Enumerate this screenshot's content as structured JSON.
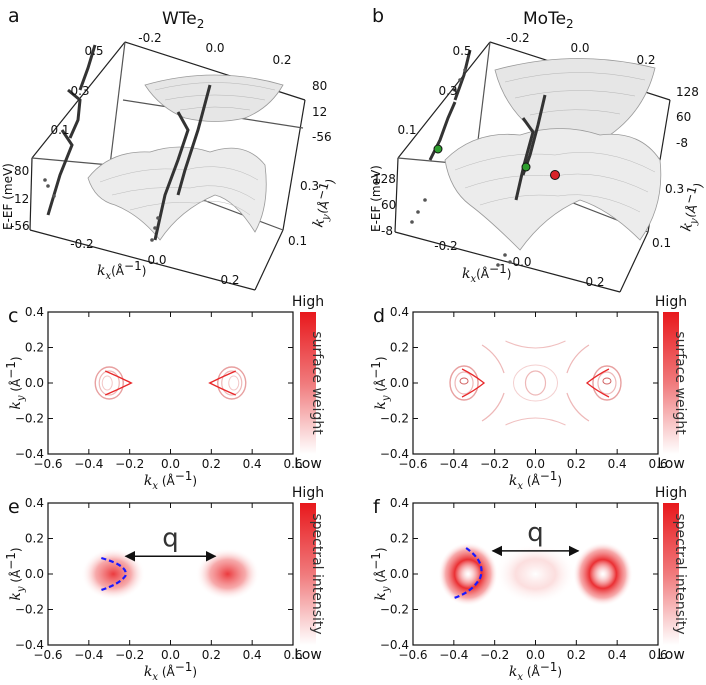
{
  "panels": {
    "a": {
      "label": "a",
      "title": "WTe",
      "title_sub": "2",
      "e_label": "E-EF (meV)",
      "e_ticks_left": [
        "80",
        "12",
        "-56"
      ],
      "e_ticks_right": [
        "80",
        "12",
        "-56"
      ],
      "ky_ticks_vertical": [
        "0.5",
        "0.3",
        "0.1"
      ],
      "ky_ticks_right": [
        "0.3",
        "0.1"
      ],
      "kx_ticks_top": [
        "-0.2",
        "0.0",
        "0.2"
      ],
      "kx_ticks_bottom": [
        "-0.2",
        "0.0",
        "0.2"
      ]
    },
    "b": {
      "label": "b",
      "title": "MoTe",
      "title_sub": "2",
      "e_label": "E-EF (meV)",
      "e_ticks_left": [
        "128",
        "60",
        "-8"
      ],
      "e_ticks_right": [
        "128",
        "60",
        "-8"
      ],
      "ky_ticks_vertical": [
        "0.5",
        "0.3",
        "0.1"
      ],
      "ky_ticks_right": [
        "0.3",
        "0.1"
      ],
      "kx_ticks_top": [
        "-0.2",
        "0.0",
        "0.2"
      ],
      "kx_ticks_bottom": [
        "-0.2",
        "0.0",
        "0.2"
      ]
    },
    "c": {
      "label": "c",
      "colorbar_label": "surface weight",
      "high": "High",
      "low": "Low"
    },
    "d": {
      "label": "d",
      "colorbar_label": "surface weight",
      "high": "High",
      "low": "Low"
    },
    "e": {
      "label": "e",
      "colorbar_label": "spectral intensity",
      "high": "High",
      "low": "Low",
      "q_label": "q"
    },
    "f": {
      "label": "f",
      "colorbar_label": "spectral intensity",
      "high": "High",
      "low": "Low",
      "q_label": "q"
    }
  },
  "axis_text": {
    "kx_symbol": "k",
    "kx_sub": "x",
    "ky_symbol": "k",
    "ky_sub": "y",
    "unit": "(Å",
    "unit_exp": "−1",
    "unit_close": ")",
    "x_ticks": [
      "−0.6",
      "−0.4",
      "−0.2",
      "0.0",
      "0.2",
      "0.4",
      "0.6"
    ],
    "y_ticks": [
      "0.4",
      "0.2",
      "0.0",
      "−0.2",
      "−0.4"
    ]
  },
  "colors": {
    "red": "#e8282a",
    "blue": "#1a1aff",
    "gray_surface": "#9a9a9a",
    "dark_line": "#333333",
    "green_dot": "#2e9e2e"
  },
  "chart_data": [
    {
      "type": "scatter",
      "panel": "c",
      "xlim": [
        -0.6,
        0.6
      ],
      "ylim": [
        -0.4,
        0.4
      ],
      "xlabel": "kx (Å−1)",
      "ylabel": "ky (Å−1)",
      "x_ticks": [
        -0.6,
        -0.4,
        -0.2,
        0.0,
        0.2,
        0.4,
        0.6
      ],
      "y_ticks": [
        -0.4,
        -0.2,
        0.0,
        0.2,
        0.4
      ],
      "contour_centers": [
        [
          -0.3,
          0.0
        ],
        [
          0.3,
          0.0
        ]
      ]
    },
    {
      "type": "scatter",
      "panel": "d",
      "xlim": [
        -0.6,
        0.6
      ],
      "ylim": [
        -0.4,
        0.4
      ],
      "xlabel": "kx (Å−1)",
      "ylabel": "ky (Å−1)",
      "x_ticks": [
        -0.6,
        -0.4,
        -0.2,
        0.0,
        0.2,
        0.4,
        0.6
      ],
      "y_ticks": [
        -0.4,
        -0.2,
        0.0,
        0.2,
        0.4
      ],
      "contour_centers": [
        [
          -0.35,
          0.0
        ],
        [
          0.35,
          0.0
        ]
      ]
    },
    {
      "type": "heatmap",
      "panel": "e",
      "xlim": [
        -0.6,
        0.6
      ],
      "ylim": [
        -0.4,
        0.4
      ],
      "xlabel": "kx (Å−1)",
      "ylabel": "ky (Å−1)",
      "x_ticks": [
        -0.6,
        -0.4,
        -0.2,
        0.0,
        0.2,
        0.4,
        0.6
      ],
      "y_ticks": [
        -0.4,
        -0.2,
        0.0,
        0.2,
        0.4
      ],
      "blobs": [
        [
          -0.28,
          0.0
        ],
        [
          0.28,
          0.0
        ]
      ],
      "q_arrow": [
        [
          -0.22,
          0.1
        ],
        [
          0.22,
          0.1
        ]
      ]
    },
    {
      "type": "heatmap",
      "panel": "f",
      "xlim": [
        -0.6,
        0.6
      ],
      "ylim": [
        -0.4,
        0.4
      ],
      "xlabel": "kx (Å−1)",
      "ylabel": "ky (Å−1)",
      "x_ticks": [
        -0.6,
        -0.4,
        -0.2,
        0.0,
        0.2,
        0.4,
        0.6
      ],
      "y_ticks": [
        -0.4,
        -0.2,
        0.0,
        0.2,
        0.4
      ],
      "blobs": [
        [
          -0.33,
          0.0
        ],
        [
          0.33,
          0.0
        ]
      ],
      "q_arrow": [
        [
          -0.21,
          0.13
        ],
        [
          0.21,
          0.13
        ]
      ]
    }
  ]
}
